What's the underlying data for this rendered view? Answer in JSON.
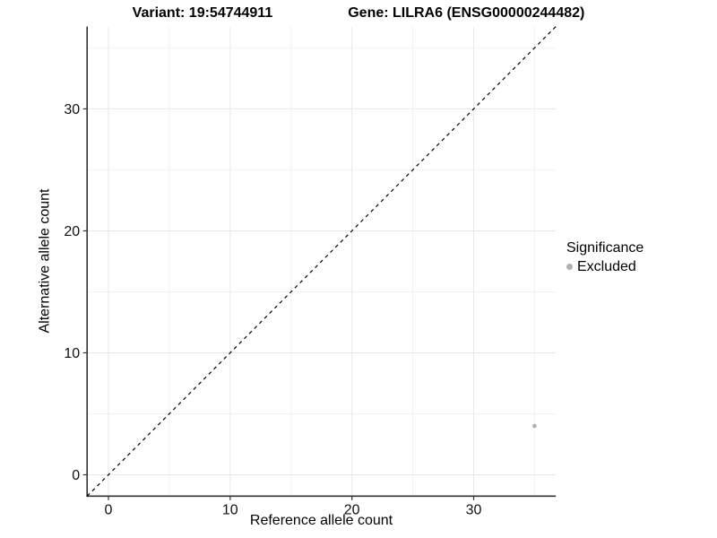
{
  "header": {
    "variant_title": "Variant: 19:54744911",
    "gene_title": "Gene: LILRA6 (ENSG00000244482)"
  },
  "chart_data": {
    "type": "scatter",
    "title_left": "Variant: 19:54744911",
    "title_right": "Gene: LILRA6 (ENSG00000244482)",
    "xlabel": "Reference allele count",
    "ylabel": "Alternative allele count",
    "xlim": [
      -1.75,
      36.75
    ],
    "ylim": [
      -1.75,
      36.75
    ],
    "major_ticks": [
      0,
      10,
      20,
      30
    ],
    "minor_ticks": [
      5,
      15,
      25,
      35
    ],
    "grid": true,
    "reference_line": {
      "type": "identity y=x",
      "style": "dashed",
      "color": "#000000"
    },
    "series": [
      {
        "name": "Excluded",
        "color": "#b0b0b0",
        "points": [
          {
            "x": 35,
            "y": 4
          }
        ]
      }
    ],
    "legend": {
      "title": "Significance",
      "position": "right",
      "entries": [
        {
          "label": "Excluded",
          "color": "#b0b0b0"
        }
      ]
    },
    "colors": {
      "axis_line": "#333333",
      "major_grid": "#e8e8e8",
      "minor_grid": "#f2f2f2",
      "tick_text": "#111111",
      "background": "#ffffff"
    }
  }
}
